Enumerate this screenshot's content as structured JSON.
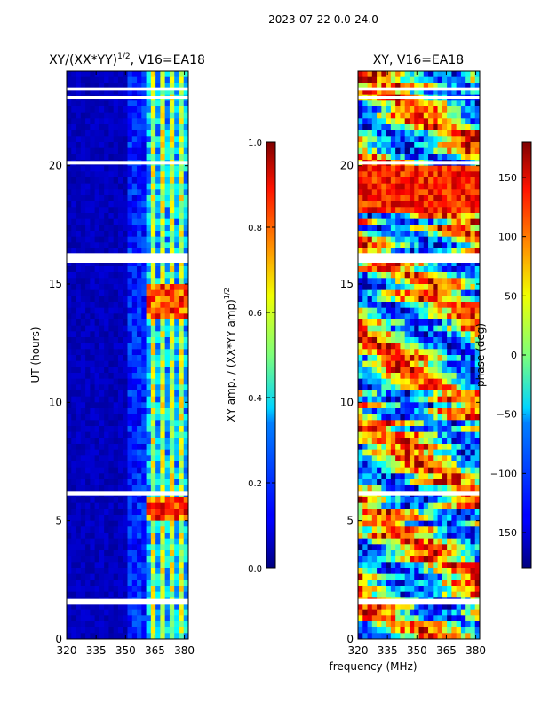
{
  "figure": {
    "suptitle": "2023-07-22 0.0-24.0",
    "xlabel": "frequency (MHz)"
  },
  "chart_data": [
    {
      "type": "heatmap",
      "title_main": "XY/(XX*YY)",
      "title_sup": "1/2",
      "title_tail": ", V16=EA18",
      "ylabel": "UT (hours)",
      "xlim": [
        320,
        382
      ],
      "ylim": [
        0,
        24
      ],
      "xticks": [
        320,
        335,
        350,
        365,
        380
      ],
      "yticks": [
        0,
        5,
        10,
        15,
        20
      ],
      "colorbar": {
        "label_main": "XY amp. / (XX*YY amp)",
        "label_sup": "1/2",
        "range": [
          0.0,
          1.0
        ],
        "ticks": [
          "0.0",
          "0.2",
          "0.4",
          "0.6",
          "0.8",
          "1.0"
        ]
      },
      "data_gaps_hours": [
        [
          1.45,
          1.7
        ],
        [
          6.05,
          6.25
        ],
        [
          15.9,
          16.3
        ],
        [
          20.05,
          20.2
        ],
        [
          22.8,
          22.95
        ],
        [
          23.2,
          23.3
        ]
      ]
    },
    {
      "type": "heatmap",
      "title": "XY, V16=EA18",
      "xlim": [
        320,
        382
      ],
      "ylim": [
        0,
        24
      ],
      "xticks": [
        320,
        335,
        350,
        365,
        380
      ],
      "yticks": [
        0,
        5,
        10,
        15,
        20
      ],
      "colorbar": {
        "label": "phase (deg)",
        "range": [
          -180,
          180
        ],
        "ticks": [
          "150",
          "100",
          "50",
          "0",
          "−50",
          "−100",
          "−150"
        ]
      },
      "data_gaps_hours": [
        [
          1.45,
          1.7
        ],
        [
          6.05,
          6.25
        ],
        [
          15.9,
          16.3
        ],
        [
          20.05,
          20.2
        ],
        [
          22.8,
          22.95
        ],
        [
          23.2,
          23.3
        ]
      ]
    }
  ]
}
